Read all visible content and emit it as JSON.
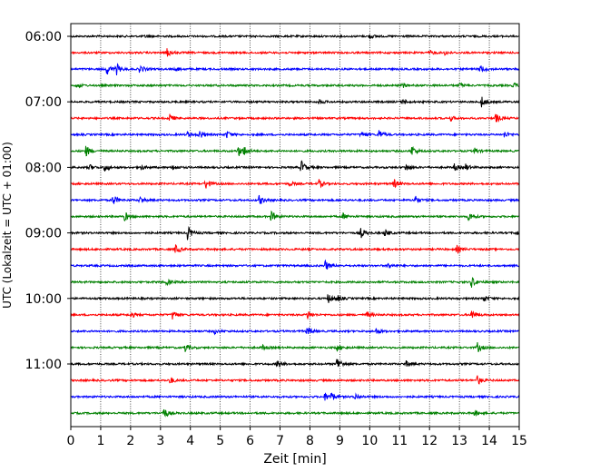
{
  "chart_data": {
    "type": "line",
    "xlabel": "Zeit  [min]",
    "ylabel": "UTC (Lokalzeit = UTC + 01:00)",
    "xlim": [
      0,
      15
    ],
    "x_ticks": [
      "0",
      "1",
      "2",
      "3",
      "4",
      "5",
      "6",
      "7",
      "8",
      "9",
      "10",
      "11",
      "12",
      "13",
      "14",
      "15"
    ],
    "y_tick_labels": [
      "06:00",
      "07:00",
      "08:00",
      "09:00",
      "10:00",
      "11:00"
    ],
    "traces_per_hour": 4,
    "trace_interval_min": 15,
    "start_time": "06:00",
    "end_time": "11:45",
    "colors": [
      "#000000",
      "#ff0000",
      "#0000ff",
      "#008000"
    ],
    "grid": "vertical dotted lines at each minute",
    "legend": "none",
    "traces": [
      {
        "start": "06:00",
        "events": [
          [
            2.5,
            0.2
          ],
          [
            10.0,
            0.25
          ]
        ]
      },
      {
        "start": "06:15",
        "events": [
          [
            3.2,
            0.6
          ],
          [
            12.0,
            0.3
          ],
          [
            12.5,
            0.25
          ]
        ]
      },
      {
        "start": "06:30",
        "events": [
          [
            1.2,
            0.7
          ],
          [
            1.5,
            0.8
          ],
          [
            2.3,
            0.5
          ],
          [
            13.7,
            0.5
          ],
          [
            3.5,
            0.25
          ]
        ]
      },
      {
        "start": "06:45",
        "events": [
          [
            0.2,
            0.3
          ],
          [
            11.1,
            0.3
          ],
          [
            13.0,
            0.3
          ],
          [
            14.8,
            0.3
          ]
        ]
      },
      {
        "start": "07:00",
        "events": [
          [
            8.3,
            0.3
          ],
          [
            11.1,
            0.4
          ],
          [
            13.7,
            0.9
          ]
        ]
      },
      {
        "start": "07:15",
        "events": [
          [
            3.3,
            0.5
          ],
          [
            12.7,
            0.3
          ],
          [
            14.2,
            0.6
          ]
        ]
      },
      {
        "start": "07:30",
        "events": [
          [
            3.9,
            0.35
          ],
          [
            4.3,
            0.6
          ],
          [
            5.2,
            0.5
          ],
          [
            9.7,
            0.4
          ],
          [
            10.3,
            0.6
          ],
          [
            14.5,
            0.4
          ]
        ]
      },
      {
        "start": "07:45",
        "events": [
          [
            0.5,
            0.7
          ],
          [
            5.6,
            0.7
          ],
          [
            5.8,
            0.5
          ],
          [
            11.4,
            0.7
          ],
          [
            13.5,
            0.4
          ]
        ]
      },
      {
        "start": "08:00",
        "events": [
          [
            0.6,
            0.4
          ],
          [
            1.1,
            0.6
          ],
          [
            2.3,
            0.4
          ],
          [
            3.4,
            0.4
          ],
          [
            7.7,
            0.9
          ],
          [
            11.2,
            0.5
          ],
          [
            12.8,
            0.5
          ],
          [
            13.2,
            0.4
          ]
        ]
      },
      {
        "start": "08:15",
        "events": [
          [
            4.5,
            0.7
          ],
          [
            7.3,
            0.3
          ],
          [
            8.3,
            0.5
          ],
          [
            10.8,
            0.6
          ]
        ]
      },
      {
        "start": "08:30",
        "events": [
          [
            1.4,
            0.7
          ],
          [
            2.3,
            0.4
          ],
          [
            6.3,
            0.6
          ],
          [
            11.5,
            0.6
          ]
        ]
      },
      {
        "start": "08:45",
        "events": [
          [
            1.8,
            0.6
          ],
          [
            6.7,
            0.7
          ],
          [
            9.1,
            0.4
          ],
          [
            13.3,
            0.6
          ]
        ]
      },
      {
        "start": "09:00",
        "events": [
          [
            3.9,
            0.9
          ],
          [
            9.7,
            0.6
          ],
          [
            10.5,
            0.5
          ],
          [
            14.9,
            0.3
          ]
        ]
      },
      {
        "start": "09:15",
        "events": [
          [
            3.5,
            0.6
          ],
          [
            12.9,
            0.5
          ]
        ]
      },
      {
        "start": "09:30",
        "events": [
          [
            8.5,
            0.7
          ],
          [
            10.6,
            0.4
          ]
        ]
      },
      {
        "start": "09:45",
        "events": [
          [
            3.2,
            0.4
          ],
          [
            13.4,
            0.7
          ]
        ]
      },
      {
        "start": "10:00",
        "events": [
          [
            8.6,
            0.6
          ],
          [
            8.9,
            0.4
          ],
          [
            13.8,
            0.4
          ]
        ]
      },
      {
        "start": "10:15",
        "events": [
          [
            2.0,
            0.4
          ],
          [
            3.4,
            0.6
          ],
          [
            7.9,
            0.6
          ],
          [
            9.9,
            0.4
          ],
          [
            13.4,
            0.7
          ]
        ]
      },
      {
        "start": "10:30",
        "events": [
          [
            4.8,
            0.3
          ],
          [
            7.9,
            0.6
          ],
          [
            10.2,
            0.4
          ]
        ]
      },
      {
        "start": "10:45",
        "events": [
          [
            3.8,
            0.6
          ],
          [
            6.4,
            0.3
          ],
          [
            8.9,
            0.4
          ],
          [
            13.6,
            0.6
          ]
        ]
      },
      {
        "start": "11:00",
        "events": [
          [
            6.9,
            0.6
          ],
          [
            8.9,
            0.9
          ],
          [
            11.2,
            0.4
          ]
        ]
      },
      {
        "start": "11:15",
        "events": [
          [
            3.3,
            0.5
          ],
          [
            13.6,
            0.6
          ]
        ]
      },
      {
        "start": "11:30",
        "events": [
          [
            8.5,
            0.5
          ],
          [
            8.7,
            0.5
          ],
          [
            9.5,
            0.4
          ]
        ]
      },
      {
        "start": "11:45",
        "events": [
          [
            3.1,
            0.7
          ],
          [
            13.5,
            0.4
          ]
        ]
      }
    ]
  }
}
